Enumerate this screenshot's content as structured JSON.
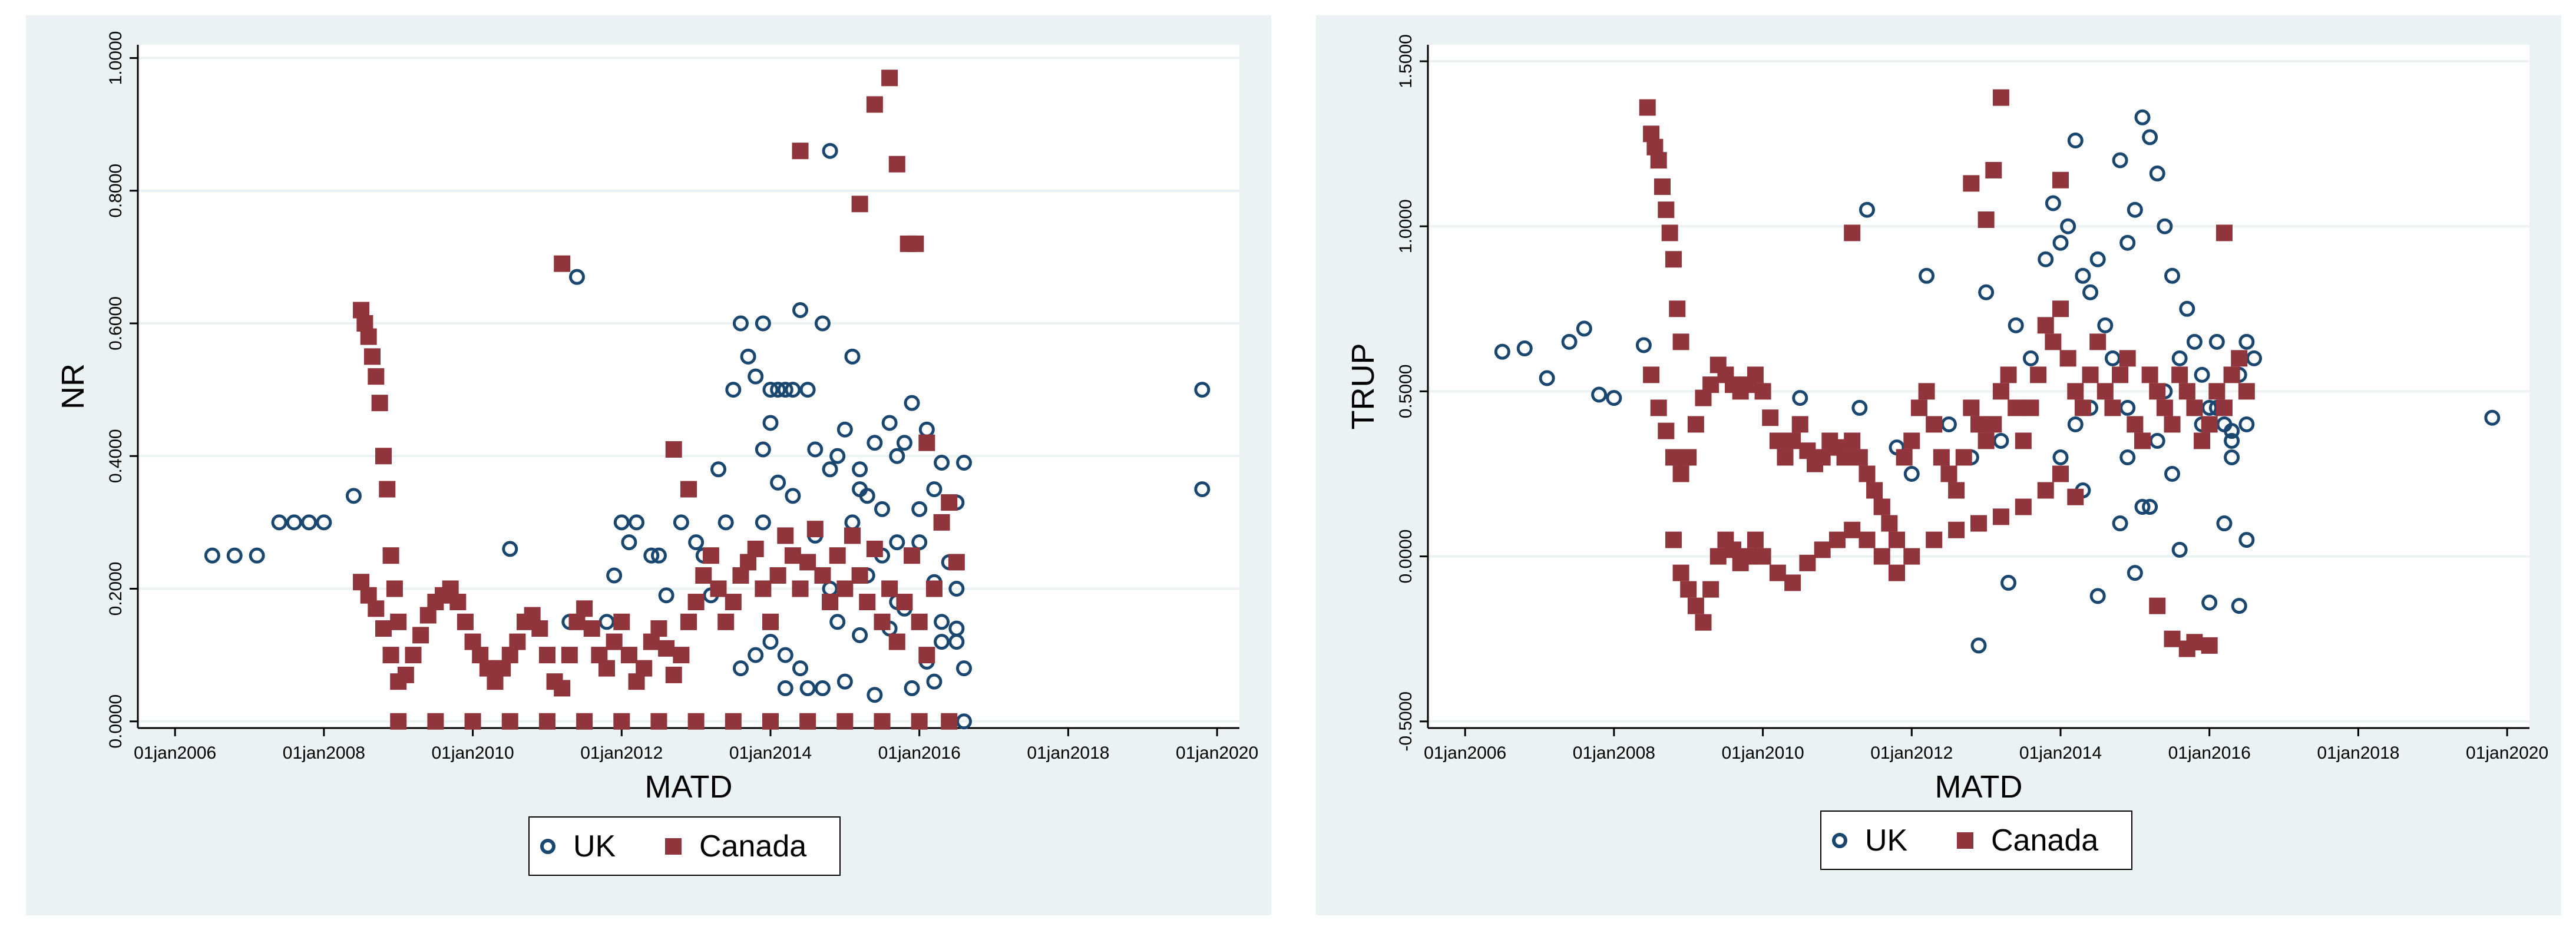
{
  "colors": {
    "panel_bg": "#eaf2f3",
    "plot_bg": "#ffffff",
    "grid": "#eaf2f3",
    "uk": "#1a476f",
    "canada": "#90353b"
  },
  "chart_data": [
    {
      "type": "scatter",
      "title": "",
      "xlabel": "MATD",
      "ylabel": "NR",
      "xlim": [
        2005.5,
        2020.3
      ],
      "ylim": [
        -0.01,
        1.02
      ],
      "x_ticks": [
        2006,
        2008,
        2010,
        2012,
        2014,
        2016,
        2018,
        2020
      ],
      "x_tick_labels": [
        "01jan2006",
        "01jan2008",
        "01jan2010",
        "01jan2012",
        "01jan2014",
        "01jan2016",
        "01jan2018",
        "01jan2020"
      ],
      "y_ticks": [
        0,
        0.2,
        0.4,
        0.6,
        0.8,
        1.0
      ],
      "y_tick_labels": [
        "0.0000",
        "0.2000",
        "0.4000",
        "0.6000",
        "0.8000",
        "1.0000"
      ],
      "grid": true,
      "legend": "bottom",
      "series": [
        {
          "name": "UK",
          "marker": "hollow-circle",
          "x": [
            2006.5,
            2006.8,
            2007.1,
            2007.4,
            2007.6,
            2007.8,
            2008.0,
            2008.4,
            2010.5,
            2011.3,
            2011.4,
            2011.8,
            2011.9,
            2012.0,
            2012.1,
            2012.2,
            2012.4,
            2012.5,
            2012.6,
            2012.8,
            2013.0,
            2013.1,
            2013.2,
            2013.3,
            2013.4,
            2013.5,
            2013.6,
            2013.7,
            2013.8,
            2013.9,
            2013.9,
            2014.0,
            2014.0,
            2014.1,
            2014.1,
            2014.2,
            2014.3,
            2014.4,
            2014.5,
            2014.6,
            2014.7,
            2014.8,
            2014.9,
            2015.0,
            2015.1,
            2015.2,
            2015.3,
            2015.4,
            2015.5,
            2015.6,
            2015.7,
            2015.8,
            2015.9,
            2016.0,
            2016.1,
            2016.2,
            2016.3,
            2016.4,
            2016.5,
            2016.6,
            2013.9,
            2014.1,
            2014.3,
            2014.6,
            2014.8,
            2015.1,
            2015.3,
            2015.5,
            2015.7,
            2016.0,
            2016.2,
            2016.4,
            2016.5,
            2014.0,
            2014.2,
            2014.4,
            2014.9,
            2015.2,
            2015.6,
            2015.8,
            2016.1,
            2016.3,
            2016.5,
            2016.6,
            2014.5,
            2014.7,
            2015.0,
            2015.4,
            2015.9,
            2016.2,
            2016.4,
            2016.6,
            2013.6,
            2013.8,
            2014.2,
            2014.8,
            2015.2,
            2015.7,
            2016.3,
            2016.5,
            2019.8,
            2019.8
          ],
          "y": [
            0.25,
            0.25,
            0.25,
            0.3,
            0.3,
            0.3,
            0.3,
            0.34,
            0.26,
            0.15,
            0.67,
            0.15,
            0.22,
            0.3,
            0.27,
            0.3,
            0.25,
            0.25,
            0.19,
            0.3,
            0.27,
            0.25,
            0.19,
            0.38,
            0.3,
            0.5,
            0.6,
            0.55,
            0.52,
            0.6,
            0.41,
            0.5,
            0.45,
            0.36,
            0.5,
            0.5,
            0.5,
            0.62,
            0.5,
            0.41,
            0.6,
            0.38,
            0.4,
            0.44,
            0.55,
            0.38,
            0.34,
            0.42,
            0.32,
            0.45,
            0.4,
            0.42,
            0.48,
            0.32,
            0.44,
            0.35,
            0.39,
            0.33,
            0.33,
            0.39,
            0.3,
            0.22,
            0.34,
            0.28,
            0.2,
            0.3,
            0.22,
            0.25,
            0.18,
            0.27,
            0.21,
            0.24,
            0.2,
            0.12,
            0.1,
            0.08,
            0.15,
            0.13,
            0.14,
            0.17,
            0.09,
            0.15,
            0.12,
            0.08,
            0.05,
            0.05,
            0.06,
            0.04,
            0.05,
            0.06,
            0.0,
            0.0,
            0.08,
            0.1,
            0.05,
            0.86,
            0.35,
            0.27,
            0.12,
            0.14,
            0.5,
            0.35
          ]
        },
        {
          "name": "Canada",
          "marker": "filled-square",
          "x": [
            2008.5,
            2008.55,
            2008.6,
            2008.65,
            2008.7,
            2008.75,
            2008.8,
            2008.85,
            2008.9,
            2008.95,
            2009.0,
            2008.5,
            2008.6,
            2008.7,
            2008.8,
            2008.9,
            2009.0,
            2009.1,
            2009.2,
            2009.3,
            2009.4,
            2009.5,
            2009.6,
            2009.7,
            2009.8,
            2009.9,
            2010.0,
            2010.1,
            2010.2,
            2010.3,
            2010.4,
            2010.5,
            2010.6,
            2010.7,
            2010.8,
            2010.9,
            2011.0,
            2011.1,
            2011.2,
            2011.3,
            2011.4,
            2011.5,
            2011.6,
            2011.7,
            2011.8,
            2011.9,
            2012.0,
            2012.1,
            2012.2,
            2012.3,
            2012.4,
            2012.5,
            2012.6,
            2012.7,
            2012.8,
            2012.9,
            2013.0,
            2013.1,
            2013.2,
            2013.3,
            2013.4,
            2013.5,
            2013.6,
            2013.7,
            2013.8,
            2013.9,
            2014.0,
            2014.1,
            2014.2,
            2014.3,
            2014.4,
            2014.5,
            2014.6,
            2014.7,
            2014.8,
            2014.9,
            2015.0,
            2015.1,
            2015.2,
            2015.3,
            2015.4,
            2015.5,
            2015.6,
            2015.7,
            2015.8,
            2015.9,
            2016.0,
            2016.1,
            2016.2,
            2016.3,
            2016.4,
            2016.5,
            2011.2,
            2012.7,
            2012.9,
            2014.4,
            2015.2,
            2015.4,
            2015.6,
            2015.7,
            2015.85,
            2015.95,
            2016.1,
            2009.0,
            2009.5,
            2010.0,
            2010.5,
            2011.0,
            2011.5,
            2012.0,
            2012.5,
            2013.0,
            2013.5,
            2014.0,
            2014.5,
            2015.0,
            2015.5,
            2016.0,
            2016.4
          ],
          "y": [
            0.62,
            0.6,
            0.58,
            0.55,
            0.52,
            0.48,
            0.4,
            0.35,
            0.25,
            0.2,
            0.15,
            0.21,
            0.19,
            0.17,
            0.14,
            0.1,
            0.06,
            0.07,
            0.1,
            0.13,
            0.16,
            0.18,
            0.19,
            0.2,
            0.18,
            0.15,
            0.12,
            0.1,
            0.08,
            0.06,
            0.08,
            0.1,
            0.12,
            0.15,
            0.16,
            0.14,
            0.1,
            0.06,
            0.05,
            0.1,
            0.15,
            0.17,
            0.14,
            0.1,
            0.08,
            0.12,
            0.15,
            0.1,
            0.06,
            0.08,
            0.12,
            0.14,
            0.11,
            0.07,
            0.1,
            0.15,
            0.18,
            0.22,
            0.25,
            0.2,
            0.15,
            0.18,
            0.22,
            0.24,
            0.26,
            0.2,
            0.15,
            0.22,
            0.28,
            0.25,
            0.2,
            0.24,
            0.29,
            0.22,
            0.18,
            0.25,
            0.2,
            0.28,
            0.22,
            0.18,
            0.26,
            0.15,
            0.2,
            0.12,
            0.18,
            0.25,
            0.15,
            0.1,
            0.2,
            0.3,
            0.33,
            0.24,
            0.69,
            0.41,
            0.35,
            0.86,
            0.78,
            0.93,
            0.97,
            0.84,
            0.72,
            0.72,
            0.42,
            0.0,
            0.0,
            0.0,
            0.0,
            0.0,
            0.0,
            0.0,
            0.0,
            0.0,
            0.0,
            0.0,
            0.0,
            0.0,
            0.0,
            0.0,
            0.0
          ]
        }
      ]
    },
    {
      "type": "scatter",
      "title": "",
      "xlabel": "MATD",
      "ylabel": "TRUP",
      "xlim": [
        2005.5,
        2020.3
      ],
      "ylim": [
        -0.52,
        1.55
      ],
      "x_ticks": [
        2006,
        2008,
        2010,
        2012,
        2014,
        2016,
        2018,
        2020
      ],
      "x_tick_labels": [
        "01jan2006",
        "01jan2008",
        "01jan2010",
        "01jan2012",
        "01jan2014",
        "01jan2016",
        "01jan2018",
        "01jan2020"
      ],
      "y_ticks": [
        -0.5,
        0,
        0.5,
        1.0,
        1.5
      ],
      "y_tick_labels": [
        "-0.5000",
        "0.0000",
        "0.5000",
        "1.0000",
        "1.5000"
      ],
      "grid": true,
      "legend": "bottom",
      "series": [
        {
          "name": "UK",
          "marker": "hollow-circle",
          "x": [
            2006.5,
            2006.8,
            2007.1,
            2007.4,
            2007.6,
            2007.8,
            2008.0,
            2008.4,
            2010.5,
            2011.3,
            2011.4,
            2011.8,
            2012.0,
            2012.2,
            2012.5,
            2012.8,
            2012.9,
            2013.0,
            2013.2,
            2013.4,
            2013.6,
            2013.8,
            2013.9,
            2014.0,
            2014.1,
            2014.2,
            2014.3,
            2014.4,
            2014.5,
            2014.6,
            2014.7,
            2014.8,
            2014.9,
            2015.0,
            2015.1,
            2015.2,
            2015.3,
            2015.4,
            2015.5,
            2015.6,
            2015.7,
            2015.8,
            2015.9,
            2016.0,
            2016.1,
            2016.2,
            2016.3,
            2016.4,
            2016.5,
            2016.6,
            2014.0,
            2014.3,
            2014.8,
            2015.1,
            2015.3,
            2015.5,
            2016.2,
            2016.5,
            2014.5,
            2015.0,
            2015.6,
            2016.0,
            2016.4,
            2013.3,
            2014.2,
            2014.9,
            2015.4,
            2015.9,
            2016.3,
            2014.4,
            2014.9,
            2015.2,
            2015.5,
            2015.9,
            2016.1,
            2016.3,
            2016.5,
            2019.8
          ],
          "y": [
            0.62,
            0.63,
            0.54,
            0.65,
            0.69,
            0.49,
            0.48,
            0.64,
            0.48,
            0.45,
            1.05,
            0.33,
            0.25,
            0.85,
            0.4,
            0.3,
            -0.27,
            0.8,
            0.35,
            0.7,
            0.6,
            0.9,
            1.07,
            0.95,
            1.0,
            1.26,
            0.85,
            0.8,
            0.9,
            0.7,
            0.6,
            1.2,
            0.95,
            1.05,
            1.33,
            1.27,
            1.16,
            1.0,
            0.85,
            0.6,
            0.75,
            0.65,
            0.55,
            0.45,
            0.65,
            0.4,
            0.35,
            0.55,
            0.65,
            0.6,
            0.3,
            0.2,
            0.1,
            0.15,
            0.35,
            0.25,
            0.1,
            0.05,
            -0.12,
            -0.05,
            0.02,
            -0.14,
            -0.15,
            -0.08,
            0.4,
            0.45,
            0.5,
            0.4,
            0.3,
            0.45,
            0.3,
            0.15,
            0.4,
            0.35,
            0.45,
            0.38,
            0.4,
            0.42
          ]
        },
        {
          "name": "Canada",
          "marker": "filled-square",
          "x": [
            2008.45,
            2008.5,
            2008.55,
            2008.6,
            2008.65,
            2008.7,
            2008.75,
            2008.8,
            2008.85,
            2008.9,
            2008.5,
            2008.6,
            2008.7,
            2008.8,
            2008.9,
            2009.0,
            2009.1,
            2009.2,
            2009.3,
            2009.4,
            2009.5,
            2009.6,
            2009.7,
            2009.8,
            2009.9,
            2010.0,
            2010.1,
            2010.2,
            2010.3,
            2010.4,
            2010.5,
            2010.6,
            2010.7,
            2010.8,
            2010.9,
            2011.0,
            2011.1,
            2011.2,
            2011.3,
            2011.4,
            2011.5,
            2011.6,
            2011.7,
            2011.8,
            2011.9,
            2012.0,
            2012.1,
            2012.2,
            2012.3,
            2012.4,
            2012.5,
            2012.6,
            2012.7,
            2012.8,
            2012.9,
            2013.0,
            2013.1,
            2013.2,
            2013.3,
            2013.4,
            2013.5,
            2013.6,
            2013.7,
            2013.8,
            2013.9,
            2014.0,
            2014.1,
            2014.2,
            2014.3,
            2014.4,
            2014.5,
            2014.6,
            2014.7,
            2014.8,
            2014.9,
            2015.0,
            2015.1,
            2015.2,
            2015.3,
            2015.4,
            2015.5,
            2015.6,
            2015.7,
            2015.8,
            2015.9,
            2016.0,
            2016.1,
            2016.2,
            2016.3,
            2016.4,
            2016.5,
            2008.8,
            2008.9,
            2009.0,
            2009.1,
            2009.2,
            2009.3,
            2009.4,
            2009.5,
            2009.6,
            2009.7,
            2009.8,
            2009.9,
            2010.0,
            2010.2,
            2010.4,
            2010.6,
            2010.8,
            2011.0,
            2011.2,
            2011.4,
            2011.6,
            2011.8,
            2012.0,
            2012.3,
            2012.6,
            2012.9,
            2013.2,
            2013.5,
            2013.8,
            2014.0,
            2014.2,
            2011.2,
            2011.6,
            2012.8,
            2013.0,
            2013.1,
            2013.2,
            2014.0,
            2015.3,
            2015.5,
            2015.7,
            2015.8,
            2016.0,
            2016.2
          ],
          "y": [
            1.36,
            1.28,
            1.24,
            1.2,
            1.12,
            1.05,
            0.98,
            0.9,
            0.75,
            0.65,
            0.55,
            0.45,
            0.38,
            0.3,
            0.25,
            0.3,
            0.4,
            0.48,
            0.52,
            0.58,
            0.55,
            0.52,
            0.5,
            0.52,
            0.55,
            0.5,
            0.42,
            0.35,
            0.3,
            0.35,
            0.4,
            0.32,
            0.28,
            0.3,
            0.35,
            0.33,
            0.3,
            0.35,
            0.3,
            0.25,
            0.2,
            0.15,
            0.1,
            0.05,
            0.3,
            0.35,
            0.45,
            0.5,
            0.4,
            0.3,
            0.25,
            0.2,
            0.3,
            0.45,
            0.4,
            0.35,
            0.4,
            0.5,
            0.55,
            0.45,
            0.35,
            0.45,
            0.55,
            0.7,
            0.65,
            0.75,
            0.6,
            0.5,
            0.45,
            0.55,
            0.65,
            0.5,
            0.45,
            0.55,
            0.6,
            0.4,
            0.35,
            0.55,
            0.5,
            0.45,
            0.4,
            0.55,
            0.5,
            0.45,
            0.35,
            0.4,
            0.5,
            0.45,
            0.55,
            0.6,
            0.5,
            0.05,
            -0.05,
            -0.1,
            -0.15,
            -0.2,
            -0.1,
            0.0,
            0.05,
            0.02,
            -0.02,
            0.0,
            0.05,
            0.0,
            -0.05,
            -0.08,
            -0.02,
            0.02,
            0.05,
            0.08,
            0.05,
            0.0,
            -0.05,
            0.0,
            0.05,
            0.08,
            0.1,
            0.12,
            0.15,
            0.2,
            0.25,
            0.18,
            0.98,
            0.15,
            1.13,
            1.02,
            1.17,
            1.39,
            1.14,
            -0.15,
            -0.25,
            -0.28,
            -0.26,
            -0.27,
            0.98
          ]
        }
      ]
    }
  ],
  "legend_items": [
    {
      "label": "UK"
    },
    {
      "label": "Canada"
    }
  ]
}
